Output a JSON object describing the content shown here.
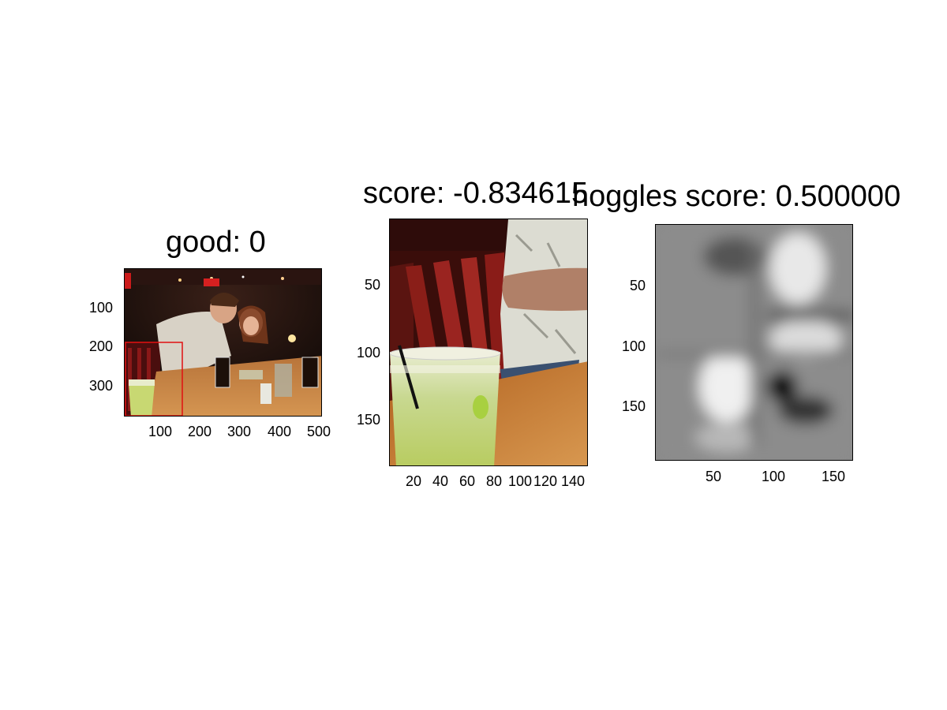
{
  "panels": [
    {
      "title": "good: 0",
      "y_ticks": [
        "100",
        "200",
        "300"
      ],
      "x_ticks": [
        "100",
        "200",
        "300",
        "400",
        "500"
      ],
      "image_desc": "restaurant-photo"
    },
    {
      "title": "score: -0.834615",
      "y_ticks": [
        "50",
        "100",
        "150"
      ],
      "x_ticks": [
        "20",
        "40",
        "60",
        "80",
        "100",
        "120",
        "140"
      ],
      "image_desc": "cropped-drink-photo"
    },
    {
      "title": "hoggles score: 0.500000",
      "y_ticks": [
        "50",
        "100",
        "150"
      ],
      "x_ticks": [
        "50",
        "100",
        "150"
      ],
      "image_desc": "hog-visualization-grayscale"
    }
  ],
  "colors": {
    "detection_box": "#e01010"
  }
}
